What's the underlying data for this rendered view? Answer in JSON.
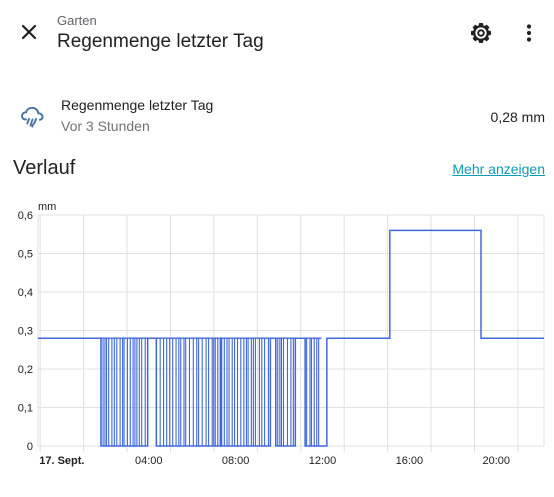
{
  "header": {
    "area": "Garten",
    "title": "Regenmenge letzter Tag",
    "close_icon": "close-icon",
    "settings_icon": "gear-icon",
    "more_icon": "more-vertical-icon"
  },
  "entity": {
    "icon": "weather-pouring-icon",
    "name": "Regenmenge letzter Tag",
    "last_changed": "Vor 3 Stunden",
    "state": "0,28 mm"
  },
  "history": {
    "title": "Verlauf",
    "more_link": "Mehr anzeigen"
  },
  "colors": {
    "series": "#4169d8",
    "link": "#0e9bb8",
    "grid": "#e0e0e0"
  },
  "chart_data": {
    "type": "line",
    "step": true,
    "ylabel": "mm",
    "ylim": [
      0,
      0.6
    ],
    "y_ticks": [
      "0,6",
      "0,5",
      "0,4",
      "0,3",
      "0,2",
      "0,1",
      "0"
    ],
    "x_ticks": [
      "17. Sept.",
      "04:00",
      "08:00",
      "12:00",
      "16:00",
      "20:00"
    ],
    "x_tick_hours": [
      0,
      4,
      8,
      12,
      16,
      20
    ],
    "xlim_hours": [
      -1.1,
      22.2
    ],
    "grid": true,
    "series": [
      {
        "name": "",
        "oscillation_segments": [
          [
            1.8,
            3.95
          ],
          [
            4.35,
            7.3
          ],
          [
            7.35,
            9.6
          ],
          [
            9.85,
            10.75
          ],
          [
            11.2,
            11.95
          ]
        ],
        "points": [
          [
            -1.1,
            0.28
          ],
          [
            1.8,
            0.28
          ],
          [
            1.8,
            0.0
          ],
          [
            3.95,
            0.0
          ],
          [
            3.95,
            0.28
          ],
          [
            4.35,
            0.28
          ],
          [
            4.35,
            0.0
          ],
          [
            7.3,
            0.0
          ],
          [
            7.3,
            0.28
          ],
          [
            7.35,
            0.28
          ],
          [
            7.35,
            0.0
          ],
          [
            9.6,
            0.0
          ],
          [
            9.6,
            0.28
          ],
          [
            9.85,
            0.28
          ],
          [
            9.85,
            0.0
          ],
          [
            10.75,
            0.0
          ],
          [
            10.75,
            0.28
          ],
          [
            11.2,
            0.28
          ],
          [
            11.2,
            0.0
          ],
          [
            12.2,
            0.0
          ],
          [
            12.2,
            0.28
          ],
          [
            15.1,
            0.28
          ],
          [
            15.1,
            0.56
          ],
          [
            19.3,
            0.56
          ],
          [
            19.3,
            0.28
          ],
          [
            22.2,
            0.28
          ]
        ]
      }
    ]
  }
}
